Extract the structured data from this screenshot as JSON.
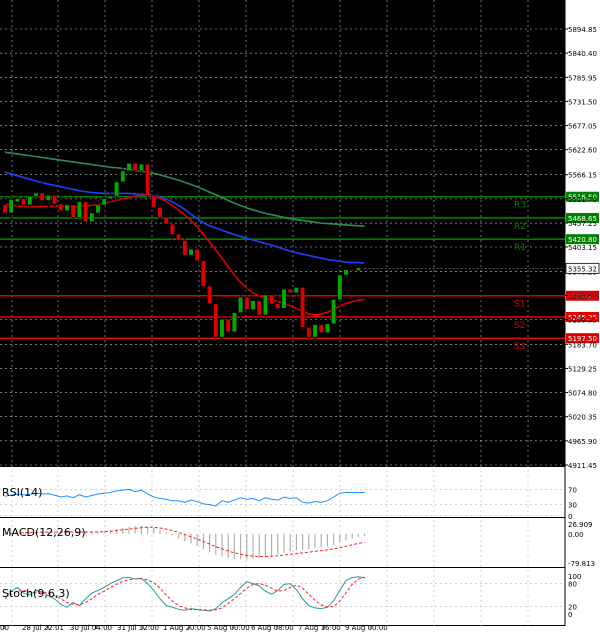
{
  "chart_data": [
    {
      "type": "candlestick",
      "name": "price",
      "y_ticks": [
        5894.85,
        5840.4,
        5785.95,
        5731.5,
        5677.05,
        5622.6,
        5566.15,
        5511.7,
        5457.25,
        5403.15,
        5348.25,
        5293.8,
        5239.35,
        5183.7,
        5129.25,
        5074.8,
        5020.35,
        4965.9,
        4911.45
      ],
      "ylim": [
        4911.45,
        5894.85
      ],
      "x_tick_labels": [
        "00",
        "28 Jul 22:01",
        "30 Jul 04:00",
        "31 Jul 12:00",
        "1 Aug 20:00",
        "5 Aug 00:00",
        "6 Aug 08:00",
        "7 Aug 16:00",
        "9 Aug 00:00"
      ],
      "current_price": "5355.32",
      "levels": [
        {
          "label": "R3",
          "value": 5516.5,
          "price_label": "5516.50",
          "color": "#008000"
        },
        {
          "label": "R2",
          "value": 5468.65,
          "price_label": "5468.65",
          "color": "#008000"
        },
        {
          "label": "R1",
          "value": 5420.8,
          "price_label": "5420.80",
          "color": "#008000"
        },
        {
          "label": "S1",
          "value": 5293.2,
          "price_label": "5293.20",
          "color": "#dd0000"
        },
        {
          "label": "S2",
          "value": 5245.35,
          "price_label": "5245.35",
          "color": "#dd0000"
        },
        {
          "label": "S3",
          "value": 5197.5,
          "price_label": "5197.50",
          "color": "#dd0000"
        }
      ],
      "candles": [
        {
          "o": 5498,
          "h": 5535,
          "l": 5470,
          "c": 5480
        },
        {
          "o": 5480,
          "h": 5525,
          "l": 5465,
          "c": 5510
        },
        {
          "o": 5505,
          "h": 5530,
          "l": 5485,
          "c": 5512
        },
        {
          "o": 5512,
          "h": 5540,
          "l": 5490,
          "c": 5498
        },
        {
          "o": 5498,
          "h": 5528,
          "l": 5480,
          "c": 5518
        },
        {
          "o": 5518,
          "h": 5545,
          "l": 5500,
          "c": 5525
        },
        {
          "o": 5525,
          "h": 5548,
          "l": 5500,
          "c": 5508
        },
        {
          "o": 5508,
          "h": 5538,
          "l": 5488,
          "c": 5520
        },
        {
          "o": 5520,
          "h": 5540,
          "l": 5490,
          "c": 5500
        },
        {
          "o": 5500,
          "h": 5520,
          "l": 5470,
          "c": 5485
        },
        {
          "o": 5485,
          "h": 5510,
          "l": 5470,
          "c": 5498
        },
        {
          "o": 5498,
          "h": 5530,
          "l": 5460,
          "c": 5470
        },
        {
          "o": 5470,
          "h": 5512,
          "l": 5440,
          "c": 5505
        },
        {
          "o": 5505,
          "h": 5515,
          "l": 5455,
          "c": 5460
        },
        {
          "o": 5460,
          "h": 5490,
          "l": 5435,
          "c": 5480
        },
        {
          "o": 5480,
          "h": 5505,
          "l": 5470,
          "c": 5498
        },
        {
          "o": 5498,
          "h": 5520,
          "l": 5480,
          "c": 5512
        },
        {
          "o": 5512,
          "h": 5532,
          "l": 5495,
          "c": 5518
        },
        {
          "o": 5518,
          "h": 5560,
          "l": 5505,
          "c": 5550
        },
        {
          "o": 5550,
          "h": 5585,
          "l": 5540,
          "c": 5575
        },
        {
          "o": 5575,
          "h": 5598,
          "l": 5560,
          "c": 5592
        },
        {
          "o": 5592,
          "h": 5605,
          "l": 5565,
          "c": 5575
        },
        {
          "o": 5575,
          "h": 5600,
          "l": 5560,
          "c": 5590
        },
        {
          "o": 5590,
          "h": 5612,
          "l": 5510,
          "c": 5520
        },
        {
          "o": 5520,
          "h": 5540,
          "l": 5480,
          "c": 5492
        },
        {
          "o": 5492,
          "h": 5510,
          "l": 5460,
          "c": 5470
        },
        {
          "o": 5470,
          "h": 5490,
          "l": 5445,
          "c": 5455
        },
        {
          "o": 5455,
          "h": 5470,
          "l": 5420,
          "c": 5432
        },
        {
          "o": 5432,
          "h": 5450,
          "l": 5405,
          "c": 5418
        },
        {
          "o": 5418,
          "h": 5435,
          "l": 5370,
          "c": 5385
        },
        {
          "o": 5385,
          "h": 5410,
          "l": 5350,
          "c": 5398
        },
        {
          "o": 5398,
          "h": 5415,
          "l": 5365,
          "c": 5372
        },
        {
          "o": 5372,
          "h": 5385,
          "l": 5300,
          "c": 5315
        },
        {
          "o": 5315,
          "h": 5330,
          "l": 5260,
          "c": 5275
        },
        {
          "o": 5275,
          "h": 5290,
          "l": 5175,
          "c": 5200
        },
        {
          "o": 5200,
          "h": 5250,
          "l": 5150,
          "c": 5240
        },
        {
          "o": 5240,
          "h": 5265,
          "l": 5200,
          "c": 5212
        },
        {
          "o": 5212,
          "h": 5268,
          "l": 5205,
          "c": 5255
        },
        {
          "o": 5255,
          "h": 5305,
          "l": 5240,
          "c": 5290
        },
        {
          "o": 5290,
          "h": 5312,
          "l": 5255,
          "c": 5262
        },
        {
          "o": 5262,
          "h": 5300,
          "l": 5245,
          "c": 5282
        },
        {
          "o": 5282,
          "h": 5310,
          "l": 5238,
          "c": 5250
        },
        {
          "o": 5250,
          "h": 5305,
          "l": 5235,
          "c": 5295
        },
        {
          "o": 5295,
          "h": 5315,
          "l": 5265,
          "c": 5275
        },
        {
          "o": 5275,
          "h": 5305,
          "l": 5255,
          "c": 5265
        },
        {
          "o": 5265,
          "h": 5318,
          "l": 5250,
          "c": 5308
        },
        {
          "o": 5308,
          "h": 5345,
          "l": 5290,
          "c": 5300
        },
        {
          "o": 5300,
          "h": 5320,
          "l": 5270,
          "c": 5312
        },
        {
          "o": 5312,
          "h": 5325,
          "l": 5210,
          "c": 5222
        },
        {
          "o": 5222,
          "h": 5242,
          "l": 5188,
          "c": 5200
        },
        {
          "o": 5200,
          "h": 5235,
          "l": 5195,
          "c": 5228
        },
        {
          "o": 5228,
          "h": 5240,
          "l": 5200,
          "c": 5210
        },
        {
          "o": 5210,
          "h": 5240,
          "l": 5205,
          "c": 5230
        },
        {
          "o": 5230,
          "h": 5290,
          "l": 5215,
          "c": 5285
        },
        {
          "o": 5285,
          "h": 5345,
          "l": 5270,
          "c": 5340
        },
        {
          "o": 5340,
          "h": 5360,
          "l": 5330,
          "c": 5352
        },
        {
          "o": 5352,
          "h": 5362,
          "l": 5338,
          "c": 5350
        },
        {
          "o": 5350,
          "h": 5365,
          "l": 5332,
          "c": 5356
        },
        {
          "o": 5356,
          "h": 5372,
          "l": 5340,
          "c": 5355
        }
      ],
      "moving_averages": [
        {
          "color": "#2e8b57",
          "values": [
            5617,
            5615,
            5613,
            5611,
            5609,
            5607,
            5605,
            5603,
            5601,
            5599,
            5597,
            5595,
            5593,
            5591,
            5589,
            5587,
            5585,
            5583,
            5582,
            5580,
            5578,
            5576,
            5574,
            5572,
            5569,
            5566,
            5562,
            5558,
            5554,
            5549,
            5544,
            5539,
            5533,
            5527,
            5521,
            5515,
            5508,
            5502,
            5497,
            5491,
            5487,
            5483,
            5479,
            5476,
            5473,
            5470,
            5467,
            5465,
            5463,
            5461,
            5459,
            5457,
            5456,
            5455,
            5454,
            5453,
            5452,
            5451,
            5450
          ]
        },
        {
          "color": "#2040ff",
          "values": [
            5572,
            5568,
            5564,
            5560,
            5556,
            5552,
            5548,
            5545,
            5542,
            5539,
            5536,
            5533,
            5530,
            5528,
            5526,
            5525,
            5524,
            5524,
            5524,
            5524,
            5524,
            5523,
            5522,
            5521,
            5520,
            5516,
            5511,
            5505,
            5497,
            5488,
            5477,
            5467,
            5458,
            5451,
            5446,
            5441,
            5436,
            5431,
            5427,
            5423,
            5419,
            5415,
            5411,
            5407,
            5403,
            5398,
            5394,
            5390,
            5387,
            5384,
            5381,
            5378,
            5375,
            5373,
            5371,
            5369,
            5368,
            5368,
            5367
          ]
        },
        {
          "color": "#dd0000",
          "values": [
            5500,
            5498,
            5496,
            5494,
            5494,
            5494,
            5495,
            5495,
            5495,
            5495,
            5495,
            5495,
            5495,
            5496,
            5497,
            5499,
            5502,
            5505,
            5508,
            5512,
            5515,
            5518,
            5520,
            5520,
            5518,
            5513,
            5506,
            5497,
            5486,
            5475,
            5463,
            5448,
            5432,
            5414,
            5396,
            5378,
            5358,
            5340,
            5324,
            5310,
            5300,
            5293,
            5288,
            5284,
            5280,
            5276,
            5270,
            5264,
            5258,
            5252,
            5250,
            5252,
            5256,
            5262,
            5270,
            5276,
            5280,
            5283,
            5285
          ]
        }
      ]
    },
    {
      "type": "line",
      "name": "rsi",
      "title": "RSI(14)",
      "y_ticks": [
        70,
        30,
        0
      ],
      "ylim": [
        0,
        100
      ],
      "series": [
        {
          "color": "#1e90ff",
          "values": [
            52,
            55,
            58,
            56,
            57,
            60,
            58,
            59,
            55,
            50,
            53,
            48,
            56,
            50,
            54,
            58,
            60,
            62,
            66,
            68,
            70,
            64,
            68,
            58,
            50,
            46,
            44,
            40,
            40,
            36,
            42,
            38,
            32,
            30,
            26,
            40,
            36,
            42,
            48,
            44,
            46,
            40,
            48,
            44,
            42,
            50,
            46,
            48,
            36,
            34,
            38,
            36,
            40,
            50,
            60,
            62,
            62,
            62,
            62
          ]
        }
      ]
    },
    {
      "type": "bar+line",
      "name": "macd",
      "title": "MACD(12,26,9)",
      "y_ticks": [
        26.909,
        0.0,
        -79.813
      ],
      "y_tick_labels": [
        "26.909",
        "0.00",
        "-79.813"
      ],
      "ylim": [
        -79.813,
        26.909
      ],
      "histogram": [
        0,
        2,
        3,
        4,
        5,
        5,
        6,
        6,
        6,
        5,
        5,
        4,
        5,
        4,
        4,
        6,
        8,
        10,
        13,
        16,
        19,
        21,
        22,
        20,
        16,
        10,
        4,
        -4,
        -12,
        -20,
        -26,
        -33,
        -42,
        -50,
        -58,
        -62,
        -66,
        -68,
        -70,
        -70,
        -68,
        -66,
        -63,
        -60,
        -56,
        -52,
        -48,
        -45,
        -44,
        -42,
        -40,
        -37,
        -34,
        -30,
        -24,
        -18,
        -13,
        -9,
        -6
      ],
      "signal": [
        0,
        1,
        2,
        3,
        4,
        4,
        5,
        5,
        5,
        5,
        5,
        5,
        5,
        5,
        5,
        5,
        6,
        7,
        9,
        11,
        13,
        15,
        17,
        18,
        18,
        16,
        13,
        9,
        4,
        -2,
        -8,
        -14,
        -21,
        -28,
        -35,
        -41,
        -47,
        -52,
        -56,
        -59,
        -61,
        -62,
        -62,
        -61,
        -60,
        -58,
        -56,
        -54,
        -52,
        -50,
        -48,
        -46,
        -44,
        -41,
        -38,
        -34,
        -30,
        -26,
        -23
      ],
      "colors": {
        "histogram": "#b0b0b0",
        "signal": "#ff2020"
      }
    },
    {
      "type": "line",
      "name": "stochastic",
      "title": "Stoch(9,6,3)",
      "y_ticks": [
        100,
        80,
        20,
        0
      ],
      "ylim": [
        0,
        100
      ],
      "series": [
        {
          "color": "#20a0a0",
          "values": [
            40,
            60,
            70,
            55,
            50,
            62,
            58,
            48,
            40,
            25,
            18,
            30,
            22,
            40,
            55,
            62,
            70,
            80,
            88,
            95,
            96,
            92,
            94,
            80,
            62,
            40,
            22,
            18,
            12,
            10,
            14,
            12,
            10,
            8,
            14,
            30,
            40,
            52,
            70,
            85,
            80,
            74,
            60,
            52,
            62,
            78,
            80,
            64,
            40,
            22,
            16,
            14,
            18,
            35,
            62,
            88,
            96,
            98,
            95
          ]
        },
        {
          "color": "#ff2020",
          "values": [
            45,
            52,
            60,
            62,
            58,
            56,
            58,
            55,
            48,
            40,
            30,
            26,
            24,
            30,
            40,
            52,
            60,
            70,
            78,
            86,
            90,
            92,
            93,
            90,
            82,
            68,
            50,
            34,
            22,
            16,
            12,
            12,
            11,
            10,
            11,
            16,
            28,
            40,
            54,
            68,
            78,
            80,
            76,
            68,
            60,
            62,
            70,
            76,
            68,
            52,
            36,
            24,
            18,
            20,
            34,
            56,
            78,
            92,
            97
          ]
        }
      ]
    }
  ]
}
